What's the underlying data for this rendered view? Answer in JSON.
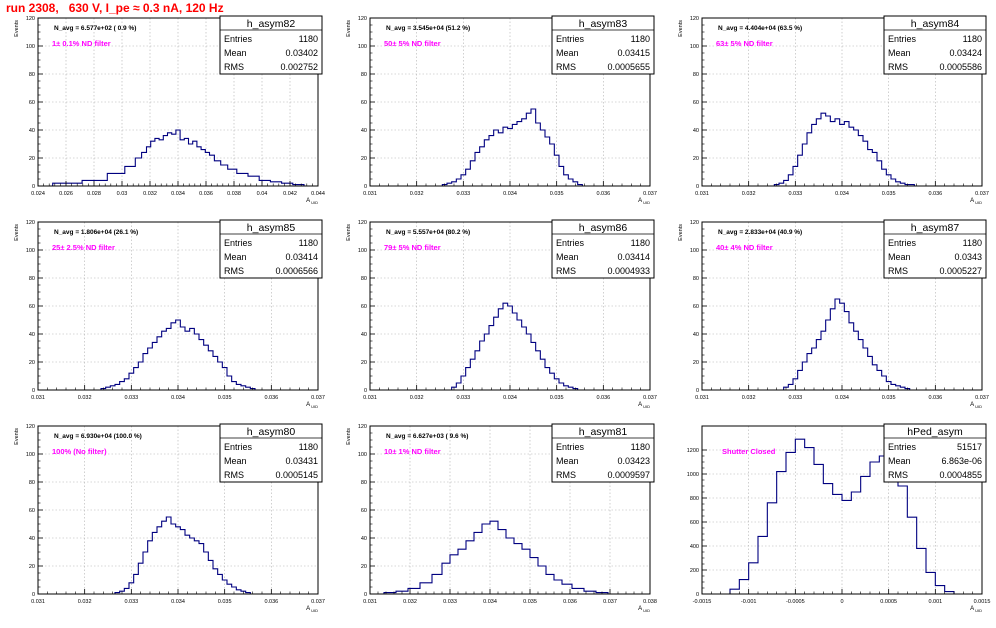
{
  "page": {
    "title": "run 2308,   630 V, I_pe ≈ 0.3 nA, 120 Hz"
  },
  "colors": {
    "title": "#ff0000",
    "histogram_line": "#000080",
    "annotation": "#ff00ff",
    "grid": "#b0b0b0",
    "text": "#000000"
  },
  "chart_data": [
    {
      "type": "histogram",
      "name": "h_asym82",
      "xlabel": "A_UID",
      "ylabel": "Events",
      "xlim": [
        0.024,
        0.044
      ],
      "ylim": [
        0,
        120
      ],
      "xticks": [
        0.024,
        0.026,
        0.028,
        0.03,
        0.032,
        0.034,
        0.036,
        0.038,
        0.04,
        0.042,
        0.044
      ],
      "xtick_labels": [
        "0.024",
        "0.026",
        "0.028",
        "0.03",
        "0.032",
        "0.034",
        "0.036",
        "0.038",
        "0.04",
        "0.042",
        "0.044"
      ],
      "yticks": [
        0,
        20,
        40,
        60,
        80,
        100,
        120
      ],
      "ytick_labels": [
        "0",
        "20",
        "40",
        "60",
        "80",
        "100",
        "120"
      ],
      "grid": true,
      "header_text": "N_avg = 6.577e+02 ( 0.9 %)",
      "annotation": "1± 0.1% ND filter",
      "stats": {
        "entries_label": "Entries",
        "entries": "1180",
        "mean_label": "Mean",
        "mean": "0.03402",
        "rms_label": "RMS",
        "rms": "0.002752"
      },
      "x": [
        0.0261,
        0.0282,
        0.0297,
        0.0307,
        0.0312,
        0.0316,
        0.0319,
        0.0322,
        0.0325,
        0.0328,
        0.0331,
        0.0334,
        0.0337,
        0.034,
        0.0343,
        0.0346,
        0.0349,
        0.0352,
        0.0355,
        0.0358,
        0.0361,
        0.0364,
        0.0368,
        0.0373,
        0.0378,
        0.0386,
        0.0394,
        0.0402,
        0.041,
        0.0418,
        0.0426
      ],
      "y": [
        2,
        4,
        9,
        14,
        20,
        24,
        28,
        32,
        34,
        33,
        36,
        38,
        37,
        40,
        33,
        34,
        30,
        32,
        28,
        26,
        24,
        22,
        18,
        15,
        12,
        9,
        7,
        4,
        3,
        2,
        1
      ]
    },
    {
      "type": "histogram",
      "name": "h_asym83",
      "xlabel": "A_UID",
      "ylabel": "Events",
      "xlim": [
        0.031,
        0.037
      ],
      "ylim": [
        0,
        120
      ],
      "xticks": [
        0.031,
        0.032,
        0.033,
        0.034,
        0.035,
        0.036,
        0.037
      ],
      "xtick_labels": [
        "0.031",
        "0.032",
        "0.033",
        "0.034",
        "0.035",
        "0.036",
        "0.037"
      ],
      "yticks": [
        0,
        20,
        40,
        60,
        80,
        100,
        120
      ],
      "ytick_labels": [
        "0",
        "20",
        "40",
        "60",
        "80",
        "100",
        "120"
      ],
      "grid": true,
      "header_text": "N_avg = 3.545e+04 (51.2 %)",
      "annotation": "50± 5% ND filter",
      "stats": {
        "entries_label": "Entries",
        "entries": "1180",
        "mean_label": "Mean",
        "mean": "0.03415",
        "rms_label": "RMS",
        "rms": "0.0005655"
      },
      "x": [
        0.0326,
        0.0327,
        0.0328,
        0.0329,
        0.033,
        0.0331,
        0.0332,
        0.0333,
        0.0334,
        0.0335,
        0.0336,
        0.0337,
        0.0338,
        0.0339,
        0.034,
        0.0341,
        0.0342,
        0.0343,
        0.0344,
        0.0345,
        0.0346,
        0.0347,
        0.0348,
        0.0349,
        0.035,
        0.0351,
        0.0352,
        0.0353,
        0.0354,
        0.0355
      ],
      "y": [
        1,
        2,
        3,
        5,
        8,
        12,
        18,
        24,
        28,
        33,
        36,
        40,
        38,
        42,
        41,
        44,
        46,
        48,
        52,
        55,
        45,
        40,
        35,
        30,
        22,
        14,
        8,
        5,
        3,
        1
      ]
    },
    {
      "type": "histogram",
      "name": "h_asym84",
      "xlabel": "A_UID",
      "ylabel": "Events",
      "xlim": [
        0.031,
        0.037
      ],
      "ylim": [
        0,
        120
      ],
      "xticks": [
        0.031,
        0.032,
        0.033,
        0.034,
        0.035,
        0.036,
        0.037
      ],
      "xtick_labels": [
        "0.031",
        "0.032",
        "0.033",
        "0.034",
        "0.035",
        "0.036",
        "0.037"
      ],
      "yticks": [
        0,
        20,
        40,
        60,
        80,
        100,
        120
      ],
      "ytick_labels": [
        "0",
        "20",
        "40",
        "60",
        "80",
        "100",
        "120"
      ],
      "grid": true,
      "header_text": "N_avg = 4.404e+04 (63.5 %)",
      "annotation": "63± 5% ND filter",
      "stats": {
        "entries_label": "Entries",
        "entries": "1180",
        "mean_label": "Mean",
        "mean": "0.03424",
        "rms_label": "RMS",
        "rms": "0.0005586"
      },
      "x": [
        0.0326,
        0.0327,
        0.0328,
        0.0329,
        0.033,
        0.0331,
        0.0332,
        0.0333,
        0.0334,
        0.0335,
        0.0336,
        0.0337,
        0.0338,
        0.0339,
        0.034,
        0.0341,
        0.0342,
        0.0343,
        0.0344,
        0.0345,
        0.0346,
        0.0347,
        0.0348,
        0.0349,
        0.035,
        0.0351,
        0.0352,
        0.0353,
        0.0354,
        0.0355
      ],
      "y": [
        1,
        2,
        4,
        8,
        14,
        22,
        30,
        38,
        44,
        48,
        52,
        50,
        46,
        48,
        44,
        46,
        42,
        40,
        36,
        32,
        26,
        24,
        18,
        12,
        8,
        5,
        3,
        2,
        1,
        1
      ]
    },
    {
      "type": "histogram",
      "name": "h_asym85",
      "xlabel": "A_UID",
      "ylabel": "Events",
      "xlim": [
        0.031,
        0.037
      ],
      "ylim": [
        0,
        120
      ],
      "xticks": [
        0.031,
        0.032,
        0.033,
        0.034,
        0.035,
        0.036,
        0.037
      ],
      "xtick_labels": [
        "0.031",
        "0.032",
        "0.033",
        "0.034",
        "0.035",
        "0.036",
        "0.037"
      ],
      "yticks": [
        0,
        20,
        40,
        60,
        80,
        100,
        120
      ],
      "ytick_labels": [
        "0",
        "20",
        "40",
        "60",
        "80",
        "100",
        "120"
      ],
      "grid": true,
      "header_text": "N_avg = 1.806e+04 (26.1 %)",
      "annotation": "25± 2.5% ND filter",
      "stats": {
        "entries_label": "Entries",
        "entries": "1180",
        "mean_label": "Mean",
        "mean": "0.03414",
        "rms_label": "RMS",
        "rms": "0.0006566"
      },
      "x": [
        0.0324,
        0.0325,
        0.0326,
        0.0327,
        0.0328,
        0.0329,
        0.033,
        0.0331,
        0.0332,
        0.0333,
        0.0334,
        0.0335,
        0.0336,
        0.0337,
        0.0338,
        0.0339,
        0.034,
        0.0341,
        0.0342,
        0.0343,
        0.0344,
        0.0345,
        0.0346,
        0.0347,
        0.0348,
        0.0349,
        0.035,
        0.0351,
        0.0352,
        0.0353,
        0.0354,
        0.0355,
        0.0356
      ],
      "y": [
        1,
        2,
        3,
        4,
        6,
        8,
        12,
        16,
        20,
        26,
        30,
        34,
        38,
        42,
        44,
        48,
        50,
        45,
        42,
        44,
        40,
        36,
        32,
        28,
        24,
        20,
        16,
        10,
        6,
        4,
        3,
        2,
        1
      ]
    },
    {
      "type": "histogram",
      "name": "h_asym86",
      "xlabel": "A_UID",
      "ylabel": "Events",
      "xlim": [
        0.031,
        0.037
      ],
      "ylim": [
        0,
        120
      ],
      "xticks": [
        0.031,
        0.032,
        0.033,
        0.034,
        0.035,
        0.036,
        0.037
      ],
      "xtick_labels": [
        "0.031",
        "0.032",
        "0.033",
        "0.034",
        "0.035",
        "0.036",
        "0.037"
      ],
      "yticks": [
        0,
        20,
        40,
        60,
        80,
        100,
        120
      ],
      "ytick_labels": [
        "0",
        "20",
        "40",
        "60",
        "80",
        "100",
        "120"
      ],
      "grid": true,
      "header_text": "N_avg = 5.557e+04 (80.2 %)",
      "annotation": "79± 5% ND filter",
      "stats": {
        "entries_label": "Entries",
        "entries": "1180",
        "mean_label": "Mean",
        "mean": "0.03414",
        "rms_label": "RMS",
        "rms": "0.0004933"
      },
      "x": [
        0.0328,
        0.0329,
        0.033,
        0.0331,
        0.0332,
        0.0333,
        0.0334,
        0.0335,
        0.0336,
        0.0337,
        0.0338,
        0.0339,
        0.034,
        0.0341,
        0.0342,
        0.0343,
        0.0344,
        0.0345,
        0.0346,
        0.0347,
        0.0348,
        0.0349,
        0.035,
        0.0351,
        0.0352,
        0.0353,
        0.0354
      ],
      "y": [
        2,
        5,
        10,
        16,
        22,
        28,
        35,
        40,
        46,
        52,
        58,
        62,
        60,
        55,
        50,
        45,
        40,
        34,
        28,
        22,
        16,
        12,
        8,
        5,
        3,
        2,
        1
      ]
    },
    {
      "type": "histogram",
      "name": "h_asym87",
      "xlabel": "A_UID",
      "ylabel": "Events",
      "xlim": [
        0.031,
        0.037
      ],
      "ylim": [
        0,
        120
      ],
      "xticks": [
        0.031,
        0.032,
        0.033,
        0.034,
        0.035,
        0.036,
        0.037
      ],
      "xtick_labels": [
        "0.031",
        "0.032",
        "0.033",
        "0.034",
        "0.035",
        "0.036",
        "0.037"
      ],
      "yticks": [
        0,
        20,
        40,
        60,
        80,
        100,
        120
      ],
      "ytick_labels": [
        "0",
        "20",
        "40",
        "60",
        "80",
        "100",
        "120"
      ],
      "grid": true,
      "header_text": "N_avg = 2.833e+04 (40.9 %)",
      "annotation": "40± 4% ND filter",
      "stats": {
        "entries_label": "Entries",
        "entries": "1180",
        "mean_label": "Mean",
        "mean": "0.0343",
        "rms_label": "RMS",
        "rms": "0.0005227"
      },
      "x": [
        0.0328,
        0.0329,
        0.033,
        0.0331,
        0.0332,
        0.0333,
        0.0334,
        0.0335,
        0.0336,
        0.0337,
        0.0338,
        0.0339,
        0.034,
        0.0341,
        0.0342,
        0.0343,
        0.0344,
        0.0345,
        0.0346,
        0.0347,
        0.0348,
        0.0349,
        0.035,
        0.0351,
        0.0352,
        0.0353,
        0.0354
      ],
      "y": [
        2,
        4,
        8,
        14,
        20,
        26,
        30,
        36,
        42,
        50,
        58,
        65,
        62,
        56,
        48,
        42,
        36,
        30,
        24,
        18,
        14,
        10,
        6,
        4,
        3,
        2,
        1
      ]
    },
    {
      "type": "histogram",
      "name": "h_asym80",
      "xlabel": "A_UID",
      "ylabel": "Events",
      "xlim": [
        0.031,
        0.037
      ],
      "ylim": [
        0,
        120
      ],
      "xticks": [
        0.031,
        0.032,
        0.033,
        0.034,
        0.035,
        0.036,
        0.037
      ],
      "xtick_labels": [
        "0.031",
        "0.032",
        "0.033",
        "0.034",
        "0.035",
        "0.036",
        "0.037"
      ],
      "yticks": [
        0,
        20,
        40,
        60,
        80,
        100,
        120
      ],
      "ytick_labels": [
        "0",
        "20",
        "40",
        "60",
        "80",
        "100",
        "120"
      ],
      "grid": true,
      "header_text": "N_avg = 6.930e+04 (100.0 %)",
      "annotation": "100% (No filter)",
      "stats": {
        "entries_label": "Entries",
        "entries": "1180",
        "mean_label": "Mean",
        "mean": "0.03431",
        "rms_label": "RMS",
        "rms": "0.0005145"
      },
      "x": [
        0.0327,
        0.0328,
        0.0329,
        0.033,
        0.0331,
        0.0332,
        0.0333,
        0.0334,
        0.0335,
        0.0336,
        0.0337,
        0.0338,
        0.0339,
        0.034,
        0.0341,
        0.0342,
        0.0343,
        0.0344,
        0.0345,
        0.0346,
        0.0347,
        0.0348,
        0.0349,
        0.035,
        0.0351,
        0.0352,
        0.0353,
        0.0354,
        0.0355
      ],
      "y": [
        1,
        2,
        4,
        8,
        14,
        22,
        30,
        38,
        44,
        48,
        52,
        55,
        50,
        48,
        46,
        42,
        40,
        38,
        36,
        30,
        24,
        18,
        14,
        10,
        7,
        5,
        3,
        2,
        1
      ]
    },
    {
      "type": "histogram",
      "name": "h_asym81",
      "xlabel": "A_UID",
      "ylabel": "Events",
      "xlim": [
        0.031,
        0.038
      ],
      "ylim": [
        0,
        120
      ],
      "xticks": [
        0.031,
        0.032,
        0.033,
        0.034,
        0.035,
        0.036,
        0.037,
        0.038
      ],
      "xtick_labels": [
        "0.031",
        "0.032",
        "0.033",
        "0.034",
        "0.035",
        "0.036",
        "0.037",
        "0.038"
      ],
      "yticks": [
        0,
        20,
        40,
        60,
        80,
        100,
        120
      ],
      "ytick_labels": [
        "0",
        "20",
        "40",
        "60",
        "80",
        "100",
        "120"
      ],
      "grid": true,
      "header_text": "N_avg = 6.627e+03 ( 9.6 %)",
      "annotation": "10± 1% ND filter",
      "stats": {
        "entries_label": "Entries",
        "entries": "1180",
        "mean_label": "Mean",
        "mean": "0.03423",
        "rms_label": "RMS",
        "rms": "0.0009597"
      },
      "x": [
        0.0315,
        0.0318,
        0.0321,
        0.0324,
        0.0327,
        0.0329,
        0.0331,
        0.0333,
        0.0335,
        0.0337,
        0.0339,
        0.0341,
        0.0343,
        0.0345,
        0.0347,
        0.0349,
        0.0351,
        0.0353,
        0.0355,
        0.0357,
        0.0359,
        0.0362,
        0.0365,
        0.0368
      ],
      "y": [
        1,
        2,
        4,
        8,
        14,
        22,
        28,
        32,
        38,
        44,
        50,
        52,
        46,
        40,
        36,
        32,
        26,
        20,
        14,
        10,
        7,
        4,
        2,
        1
      ]
    },
    {
      "type": "histogram",
      "name": "hPed_asym",
      "xlabel": "A_UID",
      "ylabel": "",
      "xlim": [
        -0.0015,
        0.0015
      ],
      "ylim": [
        0,
        1400
      ],
      "xticks": [
        -0.0015,
        -0.001,
        -0.0005,
        0,
        0.0005,
        0.001,
        0.0015
      ],
      "xtick_labels": [
        "-0.0015",
        "-0.001",
        "-0.0005",
        "0",
        "0.0005",
        "0.001",
        "0.0015"
      ],
      "yticks": [
        0,
        200,
        400,
        600,
        800,
        1000,
        1200
      ],
      "ytick_labels": [
        "0",
        "200",
        "400",
        "600",
        "800",
        "1000",
        "1200"
      ],
      "grid": true,
      "header_text": "",
      "annotation": "Shutter Closed",
      "stats": {
        "entries_label": "Entries",
        "entries": "51517",
        "mean_label": "Mean",
        "mean": "6.863e-06",
        "rms_label": "RMS",
        "rms": "0.0004855"
      },
      "x": [
        -0.00115,
        -0.00105,
        -0.00095,
        -0.00085,
        -0.00075,
        -0.00065,
        -0.00055,
        -0.00045,
        -0.00035,
        -0.00025,
        -0.00015,
        -5e-05,
        5e-05,
        0.00015,
        0.00025,
        0.00035,
        0.00045,
        0.00055,
        0.00065,
        0.00075,
        0.00085,
        0.00095,
        0.00105,
        0.00115
      ],
      "y": [
        40,
        120,
        260,
        480,
        760,
        1020,
        1180,
        1290,
        1220,
        1080,
        920,
        830,
        780,
        850,
        980,
        1100,
        1150,
        1080,
        900,
        640,
        380,
        180,
        70,
        20
      ]
    }
  ]
}
